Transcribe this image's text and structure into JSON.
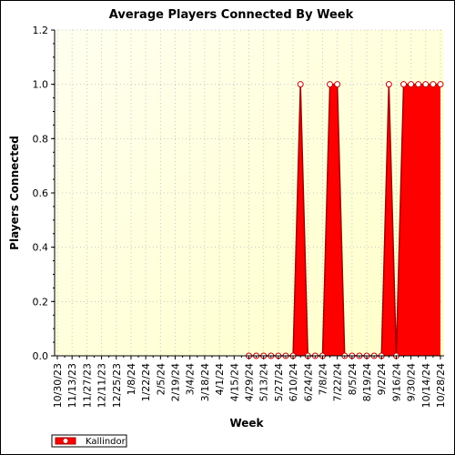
{
  "chart_data": {
    "type": "area",
    "title": "Average Players Connected By Week",
    "x_label": "Week",
    "y_label": "Players Connected",
    "categories": [
      "10/30/23",
      null,
      "11/13/23",
      null,
      "11/27/23",
      null,
      "12/11/23",
      null,
      "12/25/23",
      null,
      "1/8/24",
      null,
      "1/22/24",
      null,
      "2/5/24",
      null,
      "2/19/24",
      null,
      "3/4/24",
      null,
      "3/18/24",
      null,
      "4/1/24",
      null,
      "4/15/24",
      null,
      "4/29/24",
      null,
      "5/13/24",
      null,
      "5/27/24",
      null,
      "6/10/24",
      null,
      "6/24/24",
      null,
      "7/8/24",
      null,
      "7/22/24",
      null,
      "8/5/24",
      null,
      "8/19/24",
      null,
      "9/2/24",
      null,
      "9/16/24",
      null,
      "9/30/24",
      null,
      "10/14/24",
      null,
      "10/28/24"
    ],
    "series": [
      {
        "name": "Kallindor",
        "color": "#ff0000",
        "values": [
          null,
          null,
          null,
          null,
          null,
          null,
          null,
          null,
          null,
          null,
          null,
          null,
          null,
          null,
          null,
          null,
          null,
          null,
          null,
          null,
          null,
          null,
          null,
          null,
          null,
          null,
          0,
          0,
          0,
          0,
          0,
          0,
          0,
          1,
          0,
          0,
          0,
          1,
          1,
          0,
          0,
          0,
          0,
          0,
          0,
          1,
          0,
          1,
          1,
          1,
          1,
          1,
          1
        ]
      }
    ],
    "ylim": [
      0,
      1.2
    ],
    "yticks": [
      {
        "value": 0,
        "label": "0.0"
      },
      {
        "value": 0.2,
        "label": "0.2"
      },
      {
        "value": 0.4,
        "label": "0.4"
      },
      {
        "value": 0.6,
        "label": "0.6"
      },
      {
        "value": 0.8,
        "label": "0.8"
      },
      {
        "value": 1,
        "label": "1.0"
      },
      {
        "value": 1.2,
        "label": "1.2"
      }
    ],
    "grid": true,
    "legend": "bottom-left"
  }
}
